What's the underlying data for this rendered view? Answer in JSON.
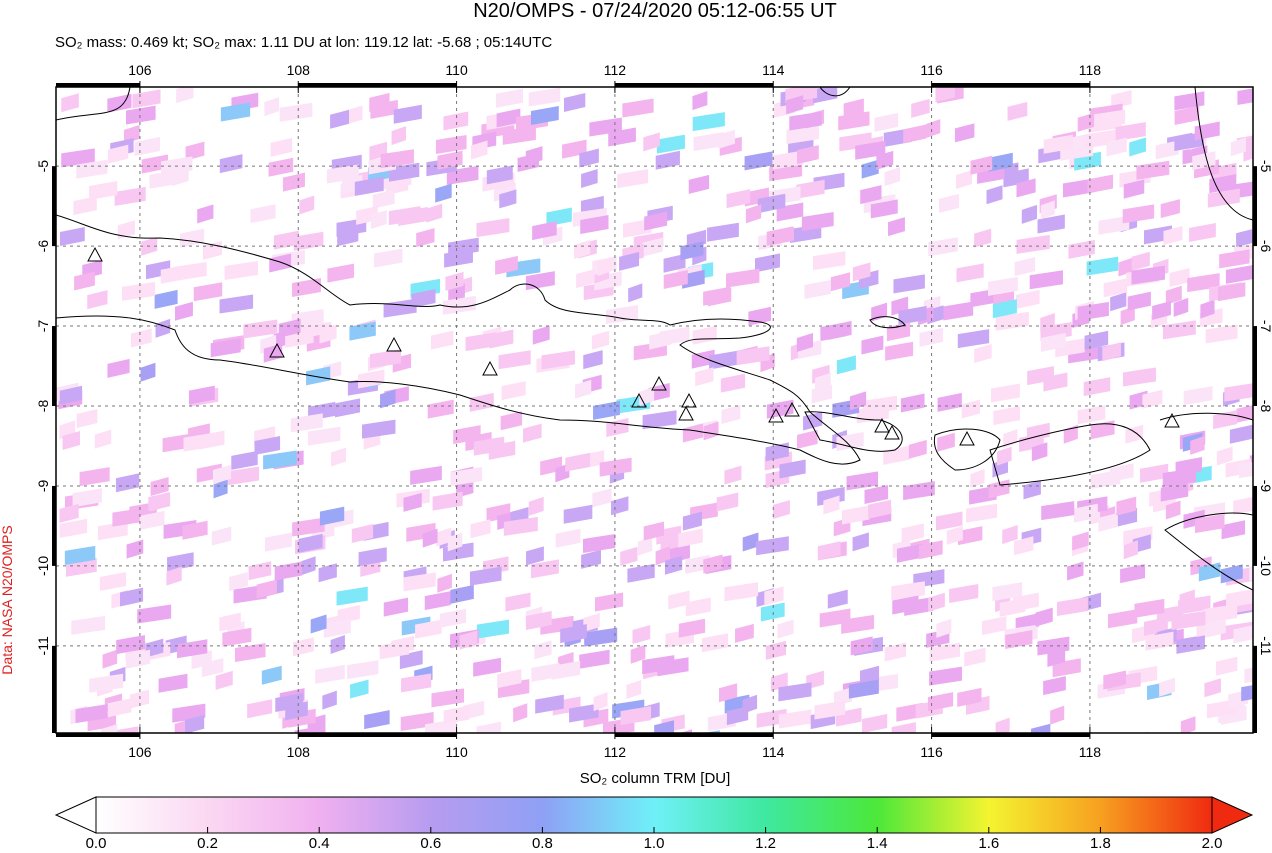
{
  "title": "N20/OMPS - 07/24/2020 05:12-06:55 UT",
  "subtitle": "SO₂ mass: 0.469 kt; SO₂ max: 1.11 DU at lon: 119.12 lat: -5.68 ; 05:14UTC",
  "credit": "Data: NASA N20/OMPS",
  "map": {
    "lonlim": [
      104.94,
      120.06
    ],
    "latlim": [
      -4.01,
      -12.09
    ],
    "lon_ticks": [
      106,
      108,
      110,
      112,
      114,
      116,
      118
    ],
    "lat_ticks": [
      -5,
      -6,
      -7,
      -8,
      -9,
      -10,
      -11
    ]
  },
  "colorbar": {
    "label": "SO₂ column TRM [DU]",
    "lim": [
      0,
      2
    ],
    "ticks": [
      {
        "value": 0,
        "label": "0.0"
      },
      {
        "value": 0.2,
        "label": "0.2"
      },
      {
        "value": 0.4,
        "label": "0.4"
      },
      {
        "value": 0.6,
        "label": "0.6"
      },
      {
        "value": 0.8,
        "label": "0.8"
      },
      {
        "value": 1,
        "label": "1.0"
      },
      {
        "value": 1.2,
        "label": "1.2"
      },
      {
        "value": 1.4,
        "label": "1.4"
      },
      {
        "value": 1.6,
        "label": "1.6"
      },
      {
        "value": 1.8,
        "label": "1.8"
      },
      {
        "value": 2,
        "label": "2.0"
      }
    ]
  }
}
